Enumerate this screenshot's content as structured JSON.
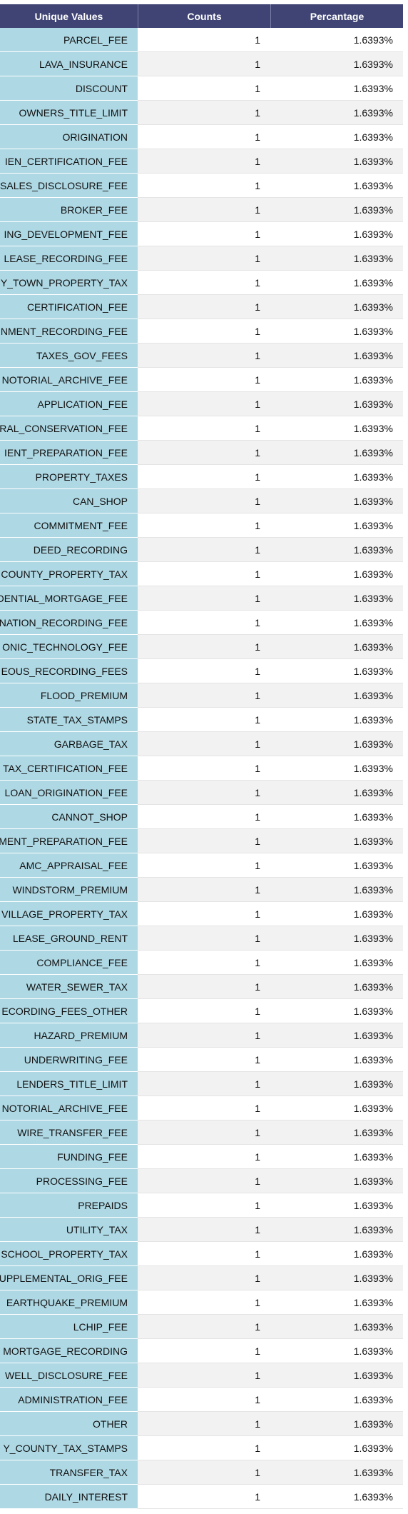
{
  "chart_data": {
    "type": "table",
    "columns": [
      "Unique Values",
      "Counts",
      "Percantage"
    ],
    "rows": [
      [
        "PARCEL_FEE",
        "1",
        "1.6393%"
      ],
      [
        "LAVA_INSURANCE",
        "1",
        "1.6393%"
      ],
      [
        "DISCOUNT",
        "1",
        "1.6393%"
      ],
      [
        "OWNERS_TITLE_LIMIT",
        "1",
        "1.6393%"
      ],
      [
        "ORIGINATION",
        "1",
        "1.6393%"
      ],
      [
        "IEN_CERTIFICATION_FEE",
        "1",
        "1.6393%"
      ],
      [
        "SALES_DISCLOSURE_FEE",
        "1",
        "1.6393%"
      ],
      [
        "BROKER_FEE",
        "1",
        "1.6393%"
      ],
      [
        "ING_DEVELOPMENT_FEE",
        "1",
        "1.6393%"
      ],
      [
        "LEASE_RECORDING_FEE",
        "1",
        "1.6393%"
      ],
      [
        "Y_TOWN_PROPERTY_TAX",
        "1",
        "1.6393%"
      ],
      [
        "CERTIFICATION_FEE",
        "1",
        "1.6393%"
      ],
      [
        "NMENT_RECORDING_FEE",
        "1",
        "1.6393%"
      ],
      [
        "TAXES_GOV_FEES",
        "1",
        "1.6393%"
      ],
      [
        "NOTORIAL_ARCHIVE_FEE",
        "1",
        "1.6393%"
      ],
      [
        "APPLICATION_FEE",
        "1",
        "1.6393%"
      ],
      [
        "RAL_CONSERVATION_FEE",
        "1",
        "1.6393%"
      ],
      [
        "IENT_PREPARATION_FEE",
        "1",
        "1.6393%"
      ],
      [
        "PROPERTY_TAXES",
        "1",
        "1.6393%"
      ],
      [
        "CAN_SHOP",
        "1",
        "1.6393%"
      ],
      [
        "COMMITMENT_FEE",
        "1",
        "1.6393%"
      ],
      [
        "DEED_RECORDING",
        "1",
        "1.6393%"
      ],
      [
        "COUNTY_PROPERTY_TAX",
        "1",
        "1.6393%"
      ],
      [
        "DENTIAL_MORTGAGE_FEE",
        "1",
        "1.6393%"
      ],
      [
        "NATION_RECORDING_FEE",
        "1",
        "1.6393%"
      ],
      [
        "ONIC_TECHNOLOGY_FEE",
        "1",
        "1.6393%"
      ],
      [
        "EOUS_RECORDING_FEES",
        "1",
        "1.6393%"
      ],
      [
        "FLOOD_PREMIUM",
        "1",
        "1.6393%"
      ],
      [
        "STATE_TAX_STAMPS",
        "1",
        "1.6393%"
      ],
      [
        "GARBAGE_TAX",
        "1",
        "1.6393%"
      ],
      [
        "TAX_CERTIFICATION_FEE",
        "1",
        "1.6393%"
      ],
      [
        "LOAN_ORIGINATION_FEE",
        "1",
        "1.6393%"
      ],
      [
        "CANNOT_SHOP",
        "1",
        "1.6393%"
      ],
      [
        "MENT_PREPARATION_FEE",
        "1",
        "1.6393%"
      ],
      [
        "AMC_APPRAISAL_FEE",
        "1",
        "1.6393%"
      ],
      [
        "WINDSTORM_PREMIUM",
        "1",
        "1.6393%"
      ],
      [
        "VILLAGE_PROPERTY_TAX",
        "1",
        "1.6393%"
      ],
      [
        "LEASE_GROUND_RENT",
        "1",
        "1.6393%"
      ],
      [
        "COMPLIANCE_FEE",
        "1",
        "1.6393%"
      ],
      [
        "WATER_SEWER_TAX",
        "1",
        "1.6393%"
      ],
      [
        "ECORDING_FEES_OTHER",
        "1",
        "1.6393%"
      ],
      [
        "HAZARD_PREMIUM",
        "1",
        "1.6393%"
      ],
      [
        "UNDERWRITING_FEE",
        "1",
        "1.6393%"
      ],
      [
        "LENDERS_TITLE_LIMIT",
        "1",
        "1.6393%"
      ],
      [
        "NOTORIAL_ARCHIVE_FEE",
        "1",
        "1.6393%"
      ],
      [
        "WIRE_TRANSFER_FEE",
        "1",
        "1.6393%"
      ],
      [
        "FUNDING_FEE",
        "1",
        "1.6393%"
      ],
      [
        "PROCESSING_FEE",
        "1",
        "1.6393%"
      ],
      [
        "PREPAIDS",
        "1",
        "1.6393%"
      ],
      [
        "UTILITY_TAX",
        "1",
        "1.6393%"
      ],
      [
        "SCHOOL_PROPERTY_TAX",
        "1",
        "1.6393%"
      ],
      [
        "UPPLEMENTAL_ORIG_FEE",
        "1",
        "1.6393%"
      ],
      [
        "EARTHQUAKE_PREMIUM",
        "1",
        "1.6393%"
      ],
      [
        "LCHIP_FEE",
        "1",
        "1.6393%"
      ],
      [
        "MORTGAGE_RECORDING",
        "1",
        "1.6393%"
      ],
      [
        "WELL_DISCLOSURE_FEE",
        "1",
        "1.6393%"
      ],
      [
        "ADMINISTRATION_FEE",
        "1",
        "1.6393%"
      ],
      [
        "OTHER",
        "1",
        "1.6393%"
      ],
      [
        "Y_COUNTY_TAX_STAMPS",
        "1",
        "1.6393%"
      ],
      [
        "TRANSFER_TAX",
        "1",
        "1.6393%"
      ],
      [
        "DAILY_INTEREST",
        "1",
        "1.6393%"
      ]
    ],
    "colors": {
      "header_bg": "#3f4474",
      "header_text": "#ffffff",
      "first_column_bg": "#aed8e4",
      "row_alt_bg": "#f2f2f2"
    }
  }
}
